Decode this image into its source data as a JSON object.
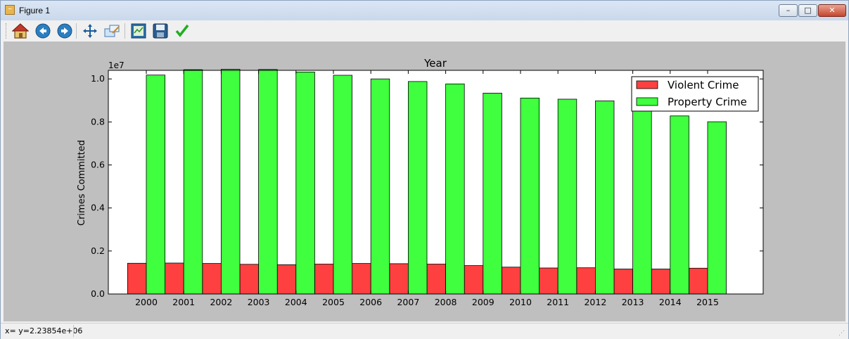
{
  "window": {
    "title": "Figure 1",
    "controls": {
      "minimize": "–",
      "maximize": "□",
      "close": "✕"
    }
  },
  "toolbar": {
    "items": [
      {
        "name": "home-icon"
      },
      {
        "name": "back-icon"
      },
      {
        "name": "forward-icon"
      },
      {
        "name": "pan-icon"
      },
      {
        "name": "zoom-icon"
      },
      {
        "name": "subplots-icon"
      },
      {
        "name": "save-icon"
      },
      {
        "name": "check-icon"
      }
    ]
  },
  "status": {
    "text": "x= y=2.23854e+06"
  },
  "colors": {
    "violent": "#ff4040",
    "property": "#3fff3f",
    "figure_bg": "#bfbfbf"
  },
  "chart_data": {
    "type": "bar",
    "title": "Year",
    "xlabel": "",
    "ylabel": "Crimes Committed",
    "offset_label": "1e7",
    "ylim": [
      0,
      10400000
    ],
    "yticks": [
      0,
      2000000,
      4000000,
      6000000,
      8000000,
      10000000
    ],
    "ytick_labels": [
      "0.0",
      "0.2",
      "0.4",
      "0.6",
      "0.8",
      "1.0"
    ],
    "grid": false,
    "legend": "top-right",
    "categories": [
      "2000",
      "2001",
      "2002",
      "2003",
      "2004",
      "2005",
      "2006",
      "2007",
      "2008",
      "2009",
      "2010",
      "2011",
      "2012",
      "2013",
      "2014",
      "2015"
    ],
    "series": [
      {
        "name": "Violent Crime",
        "color": "#ff4040",
        "values": [
          1430000,
          1440000,
          1420000,
          1380000,
          1360000,
          1390000,
          1420000,
          1410000,
          1390000,
          1320000,
          1250000,
          1210000,
          1220000,
          1160000,
          1160000,
          1200000
        ]
      },
      {
        "name": "Property Crime",
        "color": "#3fff3f",
        "values": [
          10180000,
          10430000,
          10450000,
          10440000,
          10320000,
          10170000,
          10000000,
          9880000,
          9770000,
          9340000,
          9110000,
          9060000,
          8980000,
          8630000,
          8280000,
          8010000
        ]
      }
    ]
  }
}
